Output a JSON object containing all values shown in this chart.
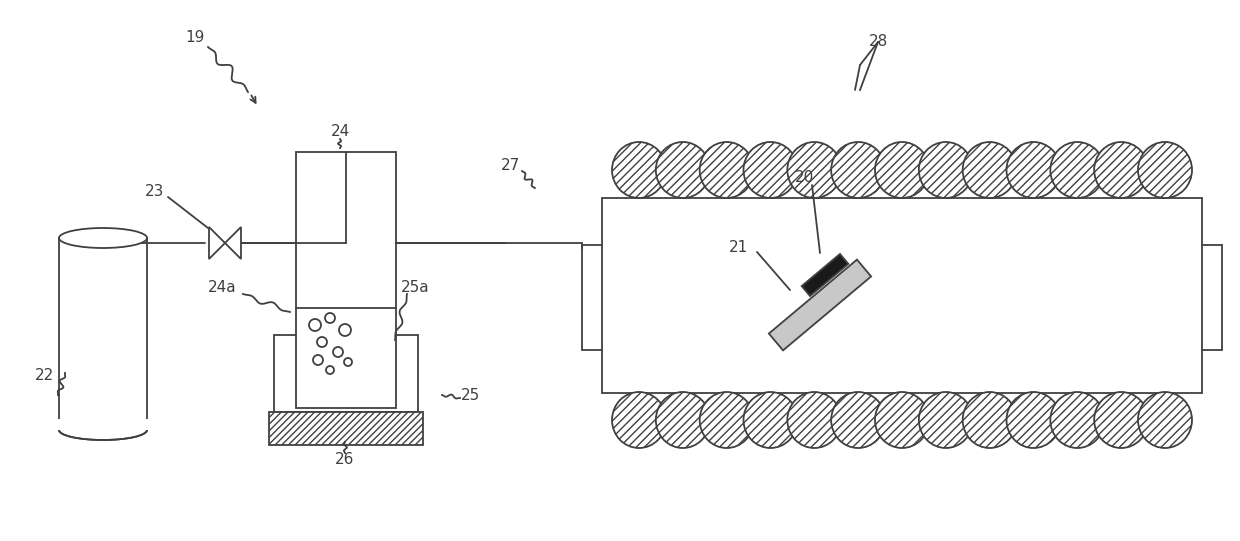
{
  "bg_color": "#ffffff",
  "line_color": "#404040",
  "fig_width": 12.4,
  "fig_height": 5.41,
  "dpi": 100
}
